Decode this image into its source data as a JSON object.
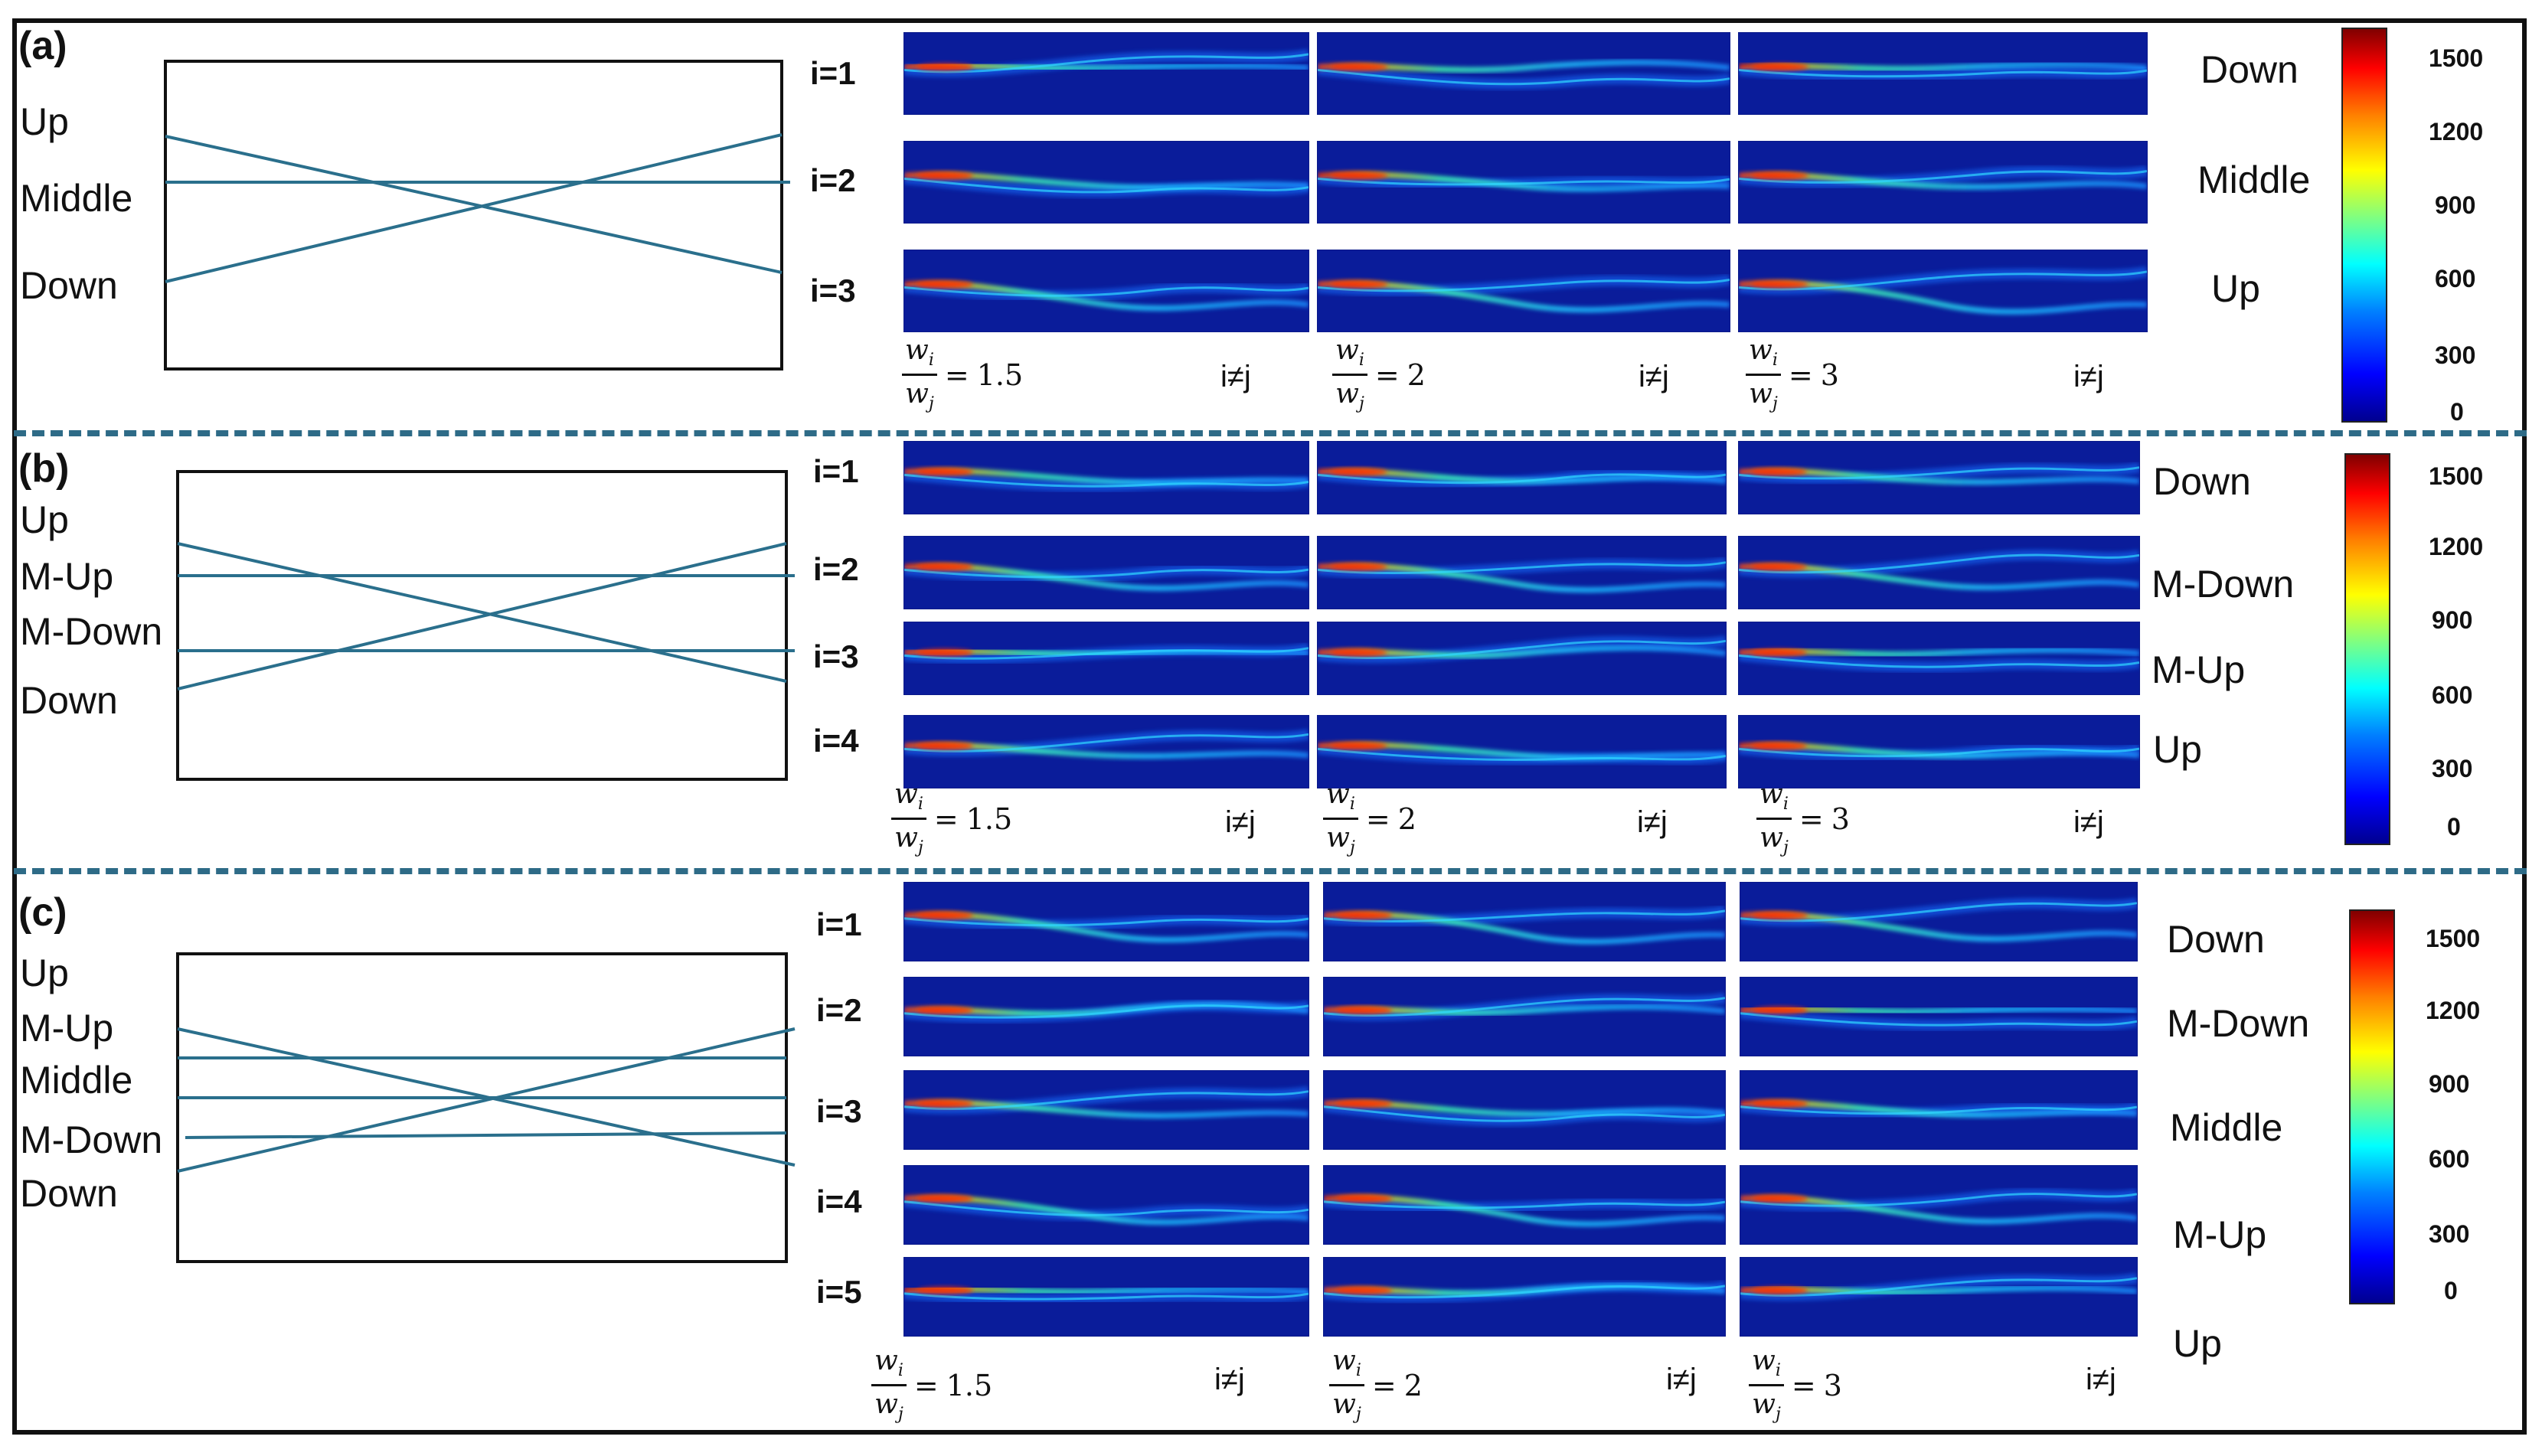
{
  "panels": [
    {
      "tag": "(a)",
      "schematic_labels": [
        "Up",
        "Middle",
        "Down"
      ],
      "rows": [
        "i=1",
        "i=2",
        "i=3"
      ],
      "side_labels": [
        "Down",
        "Middle",
        "Up"
      ],
      "ratios": [
        "1.5",
        "2",
        "3"
      ],
      "ineq": "i≠j",
      "colorbar_ticks": [
        "1500",
        "1200",
        "900",
        "600",
        "300",
        "0"
      ]
    },
    {
      "tag": "(b)",
      "schematic_labels": [
        "Up",
        "M-Up",
        "M-Down",
        "Down"
      ],
      "rows": [
        "i=1",
        "i=2",
        "i=3",
        "i=4"
      ],
      "side_labels": [
        "Down",
        "M-Down",
        "M-Up",
        "Up"
      ],
      "ratios": [
        "1.5",
        "2",
        "3"
      ],
      "ineq": "i≠j",
      "colorbar_ticks": [
        "1500",
        "1200",
        "900",
        "600",
        "300",
        "0"
      ]
    },
    {
      "tag": "(c)",
      "schematic_labels": [
        "Up",
        "M-Up",
        "Middle",
        "M-Down",
        "Down"
      ],
      "rows": [
        "i=1",
        "i=2",
        "i=3",
        "i=4",
        "i=5"
      ],
      "side_labels": [
        "Down",
        "M-Down",
        "Middle",
        "M-Up",
        "Up"
      ],
      "ratios": [
        "1.5",
        "2",
        "3"
      ],
      "ineq": "i≠j",
      "colorbar_ticks": [
        "1500",
        "1200",
        "900",
        "600",
        "300",
        "0"
      ]
    }
  ],
  "ratio_numerator": "w",
  "ratio_denominator": "w",
  "ratio_num_sub": "i",
  "ratio_den_sub": "j",
  "ratio_eq": "=",
  "colors": {
    "schematic_line": "#2a6f8c",
    "divider": "#2e6b87",
    "heatmap_bg": "#0a1c9a"
  }
}
